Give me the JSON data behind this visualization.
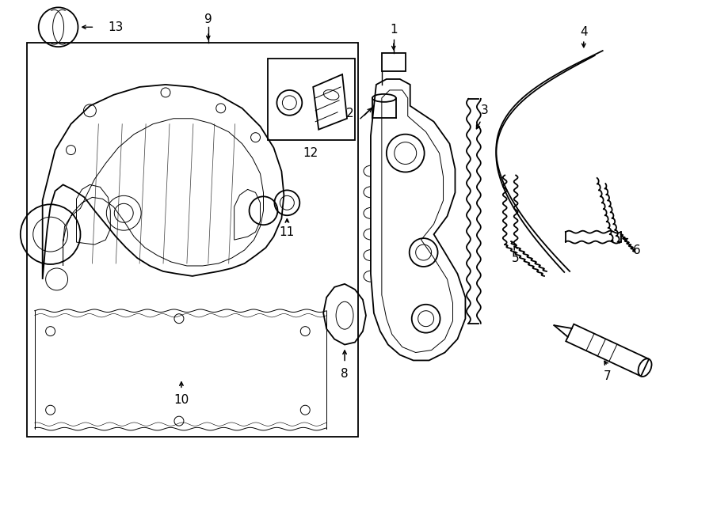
{
  "bg_color": "#ffffff",
  "line_color": "#000000",
  "lw": 1.3,
  "tlw": 0.7,
  "fig_width": 9.0,
  "fig_height": 6.61,
  "dpi": 100
}
